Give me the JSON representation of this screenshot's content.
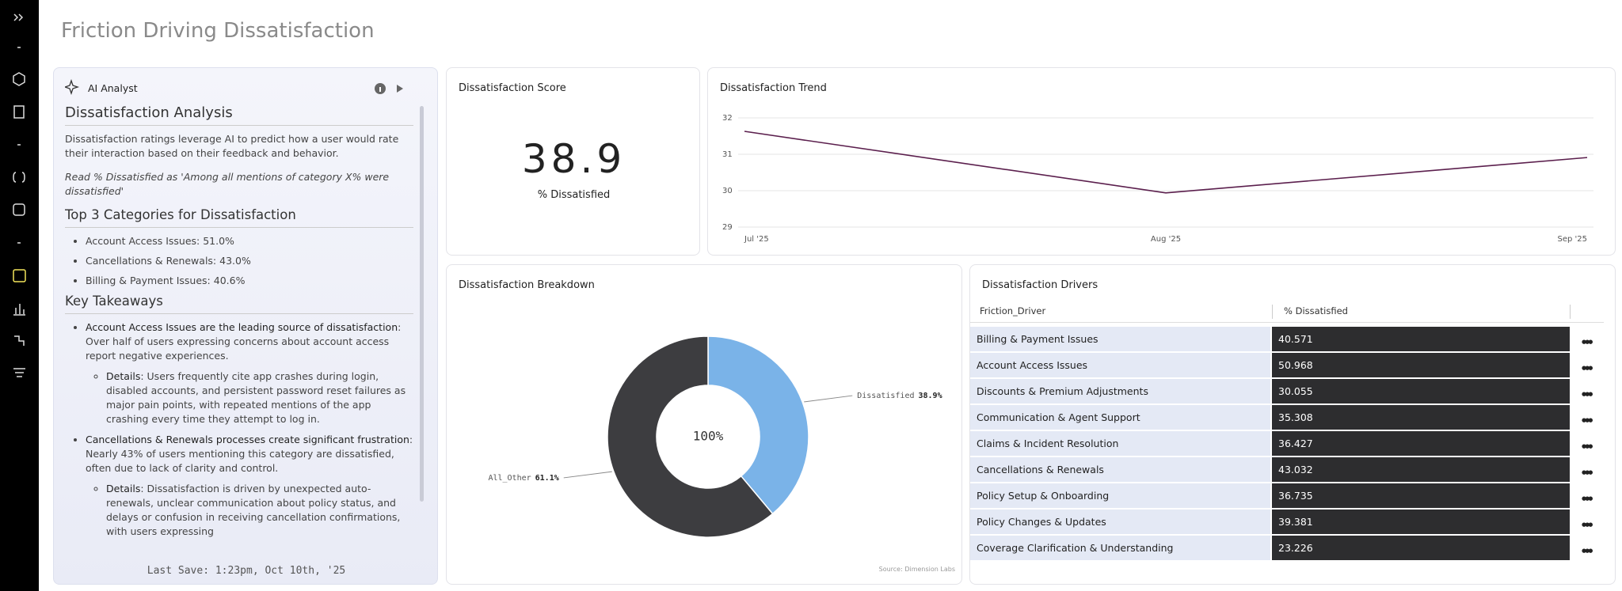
{
  "header": {
    "title": "Friction Driving Dissatisfaction"
  },
  "ai_panel": {
    "label": "AI Analyst",
    "heading": "Dissatisfaction Analysis",
    "intro": "Dissatisfaction ratings leverage AI to predict how a user would rate their interaction based on their feedback and behavior.",
    "note": "Read % Dissatisfied as 'Among all mentions of category X% were dissatisfied'",
    "top_heading": "Top 3 Categories for Dissatisfaction",
    "top_items": [
      "Account Access Issues: 51.0%",
      "Cancellations & Renewals: 43.0%",
      "Billing & Payment Issues: 40.6%"
    ],
    "takeaways_heading": "Key Takeaways",
    "takeaways": [
      {
        "bold": "Account Access Issues are the leading source of dissatisfaction",
        "text": ": Over half of users expressing concerns about account access report negative experiences.",
        "detail_bold": "Details",
        "detail": ": Users frequently cite app crashes during login, disabled accounts, and persistent password reset failures as major pain points, with repeated mentions of the app crashing every time they attempt to log in."
      },
      {
        "bold": "Cancellations & Renewals processes create significant frustration",
        "text": ": Nearly 43% of users mentioning this category are dissatisfied, often due to lack of clarity and control.",
        "detail_bold": "Details",
        "detail": ": Dissatisfaction is driven by unexpected auto-renewals, unclear communication about policy status, and delays or confusion in receiving cancellation confirmations, with users expressing"
      }
    ],
    "last_save": "Last Save: 1:23pm, Oct 10th, '25"
  },
  "score": {
    "title": "Dissatisfaction Score",
    "value": 38.9,
    "label": "% Dissatisfied"
  },
  "chart_data": [
    {
      "type": "line",
      "title": "Dissatisfaction Trend",
      "x": [
        "Jul '25",
        "Aug '25",
        "Sep '25"
      ],
      "series": [
        {
          "name": "% Dissatisfied",
          "color": "#5b1f4d",
          "values": [
            31.63,
            29.94,
            30.91
          ]
        }
      ],
      "ylim": [
        29,
        32
      ],
      "yticks": [
        29,
        30,
        31,
        32
      ],
      "grid": true
    },
    {
      "type": "pie",
      "title": "Dissatisfaction Breakdown",
      "categories": [
        "Dissatisfied",
        "All_Other"
      ],
      "values": [
        38.9,
        61.1
      ],
      "value_labels": [
        "38.9%",
        "61.1%"
      ],
      "colors": [
        "#7ab3e8",
        "#3d3d40"
      ],
      "center_label": "100%",
      "source": "Source: Dimension Labs"
    }
  ],
  "drivers": {
    "title": "Dissatisfaction Drivers",
    "columns": [
      "Friction_Driver",
      "% Dissatisfied"
    ],
    "rows": [
      [
        "Billing & Payment Issues",
        40.571
      ],
      [
        "Account Access Issues",
        50.968
      ],
      [
        "Discounts & Premium Adjustments",
        30.055
      ],
      [
        "Communication & Agent Support",
        35.308
      ],
      [
        "Claims & Incident Resolution",
        36.427
      ],
      [
        "Cancellations & Renewals",
        43.032
      ],
      [
        "Policy Setup & Onboarding",
        36.735
      ],
      [
        "Policy Changes & Updates",
        39.381
      ],
      [
        "Coverage Clarification & Understanding",
        23.226
      ]
    ]
  }
}
